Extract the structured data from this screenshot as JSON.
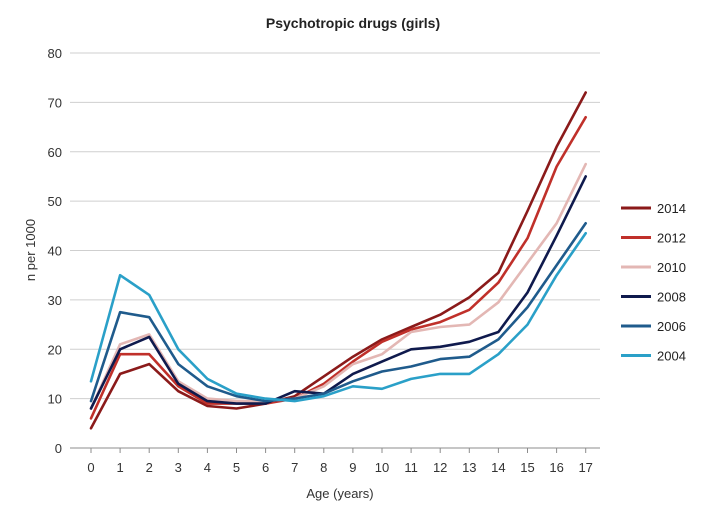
{
  "chart_data": {
    "type": "line",
    "title": "Psychotropic drugs (girls)",
    "xlabel": "Age (years)",
    "ylabel": "n per 1000",
    "ylim": [
      0,
      80
    ],
    "yticks": [
      0,
      10,
      20,
      30,
      40,
      50,
      60,
      70,
      80
    ],
    "grid": true,
    "legend_position": "right",
    "categories": [
      "0",
      "1",
      "2",
      "3",
      "4",
      "5",
      "6",
      "7",
      "8",
      "9",
      "10",
      "11",
      "12",
      "13",
      "14",
      "15",
      "16",
      "17"
    ],
    "series": [
      {
        "name": "2014",
        "color": "#8B1A1A",
        "values": [
          4,
          15,
          17,
          11.5,
          8.5,
          8,
          9,
          10.5,
          14.5,
          18.5,
          22,
          24.5,
          27,
          30.5,
          35.5,
          48,
          61,
          72
        ]
      },
      {
        "name": "2012",
        "color": "#C0302A",
        "values": [
          6,
          19,
          19,
          12.5,
          9,
          9,
          9,
          10,
          13,
          17.5,
          21.5,
          24,
          25.5,
          28,
          33.5,
          42.5,
          57,
          67
        ]
      },
      {
        "name": "2010",
        "color": "#E3B7B4",
        "values": [
          8,
          21,
          23,
          13.5,
          10,
          9.5,
          9.5,
          10,
          12.5,
          17,
          19,
          23.5,
          24.5,
          25,
          29.5,
          37.5,
          45.5,
          57.5
        ]
      },
      {
        "name": "2008",
        "color": "#0F1A4D",
        "values": [
          8,
          20,
          22.5,
          13,
          9.5,
          9,
          9,
          11.5,
          11,
          15,
          17.5,
          20,
          20.5,
          21.5,
          23.5,
          31.5,
          43,
          55
        ]
      },
      {
        "name": "2006",
        "color": "#1F5B8C",
        "values": [
          9.5,
          27.5,
          26.5,
          17,
          12.5,
          10.5,
          9.5,
          10,
          11,
          13.5,
          15.5,
          16.5,
          18,
          18.5,
          22,
          28.5,
          37,
          45.5
        ]
      },
      {
        "name": "2004",
        "color": "#2AA0C8",
        "values": [
          13.5,
          35,
          31,
          20,
          14,
          11,
          10,
          9.5,
          10.5,
          12.5,
          12,
          14,
          15,
          15,
          19,
          25,
          35,
          43.5
        ]
      }
    ]
  }
}
